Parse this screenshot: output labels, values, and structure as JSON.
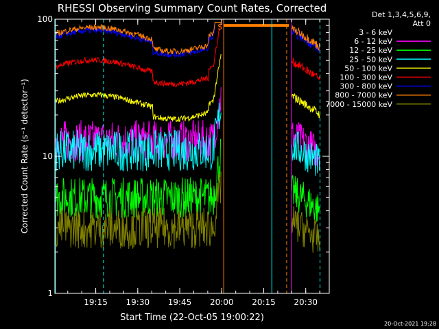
{
  "chart_data": {
    "type": "line",
    "title": "RHESSI Observing Summary Count Rates, Corrected",
    "xlabel": "Start Time (22-Oct-05 19:00:22)",
    "ylabel": "Corrected Count Rate (s⁻¹ detector⁻¹)",
    "y_scale": "log",
    "ylim": [
      1,
      100
    ],
    "x_unit": "minutes after 19:00:22",
    "xlim": [
      0,
      98
    ],
    "x_tick_values": [
      14.6,
      29.6,
      44.6,
      59.6,
      74.6,
      89.6
    ],
    "x_tick_labels": [
      "19:15",
      "19:30",
      "19:45",
      "20:00",
      "20:15",
      "20:30"
    ],
    "y_tick_values": [
      1,
      10,
      100
    ],
    "y_tick_labels": [
      "1",
      "10",
      "100"
    ],
    "legend_header": [
      "Det 1,3,4,5,6,9,",
      "Att 0"
    ],
    "legend_position": "right",
    "series": [
      {
        "name": "3 - 6 keV",
        "color": "#000000",
        "level": 3.1
      },
      {
        "name": "6 - 12 keV",
        "color": "#ff00ff",
        "level": 13
      },
      {
        "name": "12 - 25 keV",
        "color": "#00ff00",
        "level": 5
      },
      {
        "name": "25 - 50 keV",
        "color": "#00ffff",
        "level": 11
      },
      {
        "name": "50 - 100 keV",
        "color": "#ffff00",
        "level": 25
      },
      {
        "name": "100 - 300 keV",
        "color": "#ff0000",
        "level": 45
      },
      {
        "name": "300 - 800 keV",
        "color": "#0000ff",
        "level": 74
      },
      {
        "name": "800 - 7000 keV",
        "color": "#ff8000",
        "level": 78
      },
      {
        "name": "7000 - 15000 keV",
        "color": "#808000",
        "level": 3
      }
    ],
    "annotations": [
      {
        "text": "S",
        "x": 59,
        "color": "#ff8000"
      }
    ],
    "saa_bar": {
      "x_start": 60.3,
      "x_end": 83.6,
      "level": 90,
      "color": "#ff8000"
    },
    "data_gap": {
      "x_start": 60.3,
      "x_end": 84.5
    },
    "vlines": [
      {
        "x": 0.2,
        "color": "#00ffff",
        "style": "solid"
      },
      {
        "x": 17.4,
        "color": "#00ffff",
        "style": "dashed"
      },
      {
        "x": 60.3,
        "color": "#ff8000",
        "style": "solid"
      },
      {
        "x": 77.5,
        "color": "#00ffff",
        "style": "solid"
      },
      {
        "x": 82.8,
        "color": "#ff8000",
        "style": "dashed"
      },
      {
        "x": 84.5,
        "color": "#ff00ff",
        "style": "solid"
      },
      {
        "x": 94.7,
        "color": "#00ffff",
        "style": "dashed"
      }
    ]
  },
  "footer_timestamp": "20-Oct-2021 19:28"
}
